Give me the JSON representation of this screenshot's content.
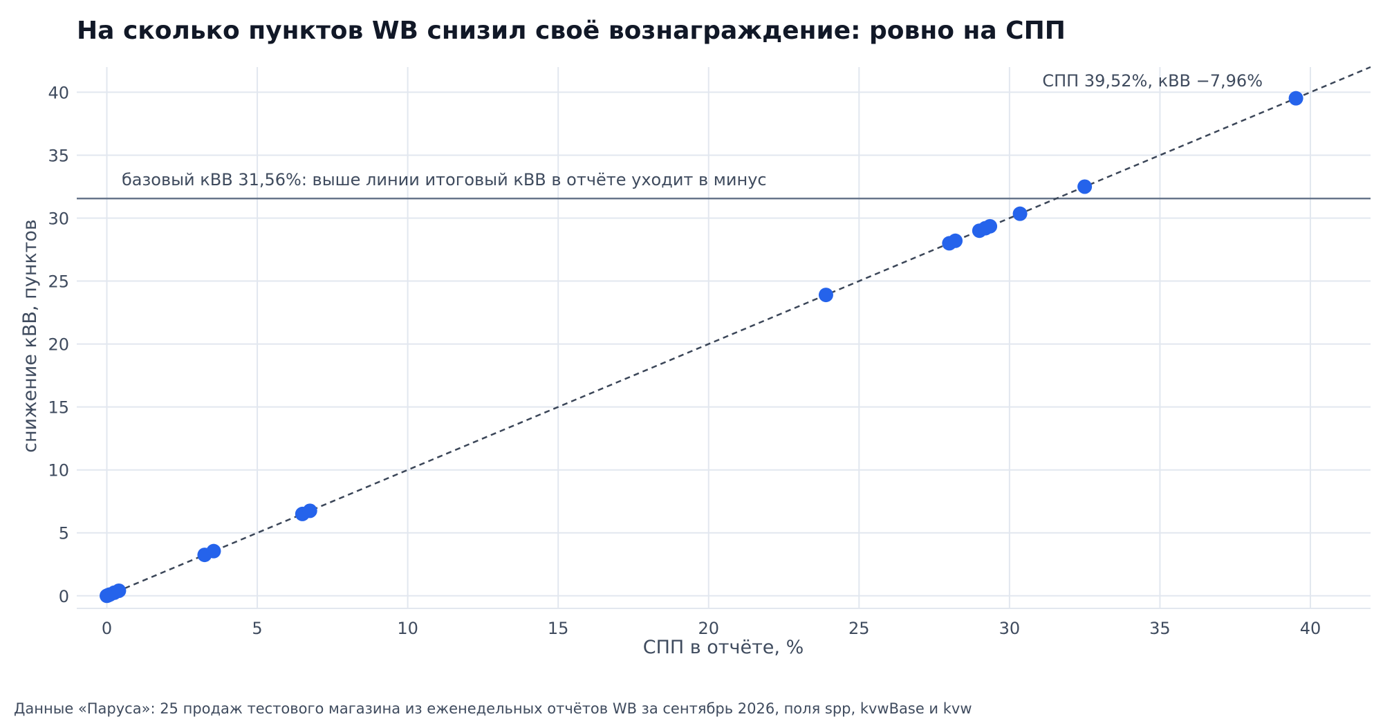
{
  "chart_data": {
    "type": "scatter",
    "title": "На сколько пунктов WB снизил своё вознаграждение: ровно на СПП",
    "xlabel": "СПП в отчёте, %",
    "ylabel": "снижение кВВ, пунктов",
    "xlim": [
      -1,
      42
    ],
    "ylim": [
      -1,
      42
    ],
    "x_ticks": [
      0,
      5,
      10,
      15,
      20,
      25,
      30,
      35,
      40
    ],
    "y_ticks": [
      0,
      5,
      10,
      15,
      20,
      25,
      30,
      35,
      40
    ],
    "grid": true,
    "legend": "none",
    "colors": {
      "points": "#2563eb",
      "fit_line": "#3b4658",
      "ref_line": "#66758a",
      "grid": "#e2e7ef",
      "text": "#3f4b5e",
      "title": "#111827"
    },
    "series": [
      {
        "values": [
          {
            "x": 0,
            "y": 0
          },
          {
            "x": 0.05,
            "y": 0.05
          },
          {
            "x": 0.1,
            "y": 0.1
          },
          {
            "x": 0.25,
            "y": 0.25
          },
          {
            "x": 0.4,
            "y": 0.4
          },
          {
            "x": 3.25,
            "y": 3.25
          },
          {
            "x": 3.55,
            "y": 3.55
          },
          {
            "x": 6.5,
            "y": 6.5
          },
          {
            "x": 6.75,
            "y": 6.75
          },
          {
            "x": 23.9,
            "y": 23.9
          },
          {
            "x": 28.0,
            "y": 28.0
          },
          {
            "x": 28.2,
            "y": 28.2
          },
          {
            "x": 29.0,
            "y": 29.0
          },
          {
            "x": 29.2,
            "y": 29.2
          },
          {
            "x": 29.35,
            "y": 29.35
          },
          {
            "x": 30.35,
            "y": 30.35
          },
          {
            "x": 32.5,
            "y": 32.5
          },
          {
            "x": 39.52,
            "y": 39.52
          }
        ]
      }
    ],
    "fit_line": {
      "style": "dashed",
      "from": [
        0,
        0
      ],
      "to": [
        42,
        42
      ]
    },
    "reference_line": {
      "y": 31.56,
      "style": "solid"
    },
    "annotations": {
      "reference": "базовый кВВ 31,56%: выше линии итоговый кВВ в отчёте уходит в минус",
      "max_point": "СПП 39,52%, кВВ −7,96%"
    }
  },
  "footer": {
    "source": "Данные «Паруса»: 25 продаж тестового магазина из еженедельных отчётов WB за сентябрь 2026, поля spp, kvwBase и kvw"
  }
}
